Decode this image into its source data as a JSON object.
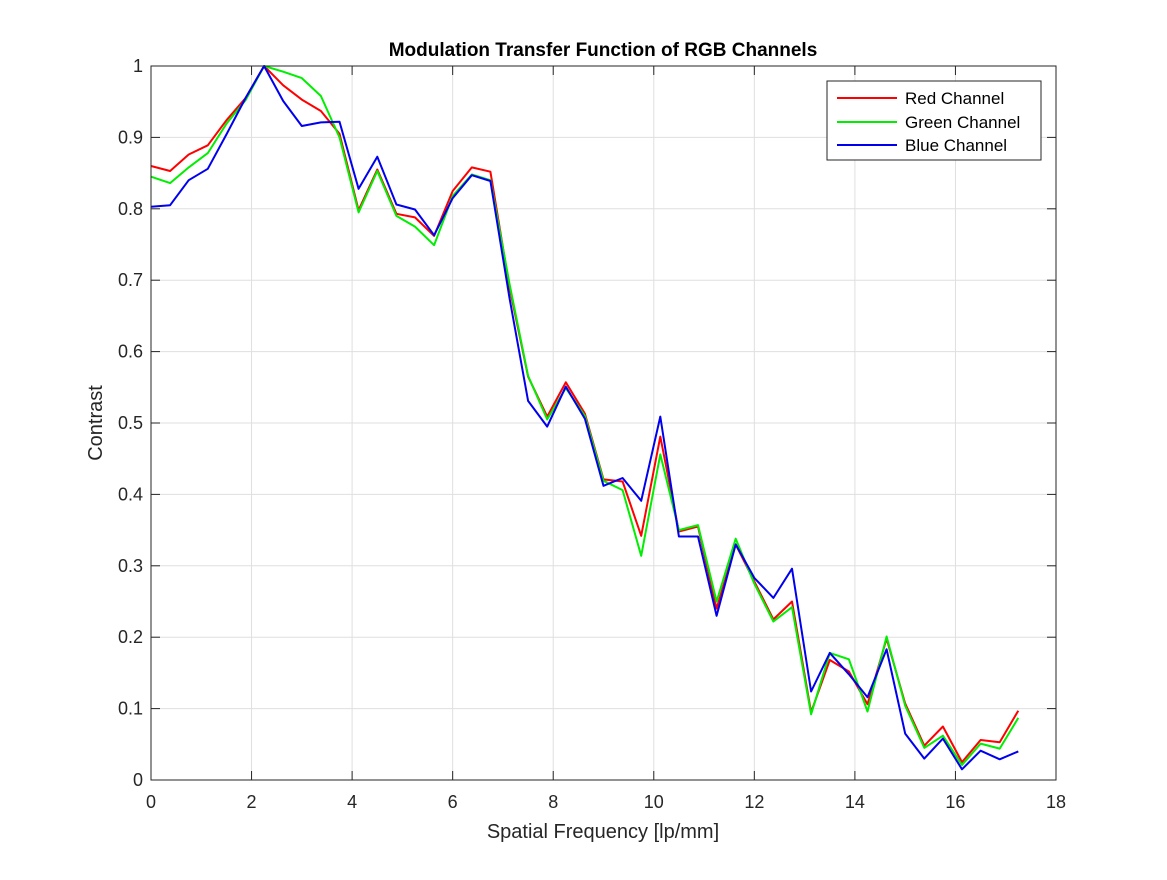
{
  "chart_data": {
    "type": "line",
    "title": "Modulation Transfer Function of RGB Channels",
    "xlabel": "Spatial Frequency [lp/mm]",
    "ylabel": "Contrast",
    "xlim": [
      0,
      18
    ],
    "ylim": [
      0,
      1
    ],
    "xticks": [
      0,
      2,
      4,
      6,
      8,
      10,
      12,
      14,
      16,
      18
    ],
    "yticks": [
      0,
      0.1,
      0.2,
      0.3,
      0.4,
      0.5,
      0.6,
      0.7,
      0.8,
      0.9,
      1
    ],
    "grid": true,
    "legend_position": "top-right",
    "x": [
      0,
      0.38,
      0.75,
      1.13,
      1.5,
      1.88,
      2.25,
      2.63,
      3.0,
      3.38,
      3.75,
      4.13,
      4.5,
      4.88,
      5.25,
      5.63,
      6.0,
      6.38,
      6.75,
      7.13,
      7.5,
      7.88,
      8.25,
      8.63,
      9.0,
      9.38,
      9.75,
      10.13,
      10.5,
      10.88,
      11.25,
      11.63,
      12.0,
      12.38,
      12.75,
      13.13,
      13.5,
      13.88,
      14.25,
      14.63,
      15.0,
      15.38,
      15.75,
      16.13,
      16.5,
      16.88,
      17.25
    ],
    "series": [
      {
        "name": "Red Channel",
        "color": "#ff0000",
        "values": [
          0.86,
          0.853,
          0.876,
          0.889,
          0.924,
          0.955,
          1.0,
          0.973,
          0.953,
          0.937,
          0.905,
          0.798,
          0.855,
          0.793,
          0.788,
          0.762,
          0.825,
          0.858,
          0.852,
          0.69,
          0.565,
          0.509,
          0.557,
          0.513,
          0.421,
          0.418,
          0.342,
          0.481,
          0.348,
          0.355,
          0.24,
          0.33,
          0.278,
          0.225,
          0.25,
          0.095,
          0.168,
          0.152,
          0.106,
          0.198,
          0.107,
          0.048,
          0.075,
          0.025,
          0.056,
          0.053,
          0.097
        ]
      },
      {
        "name": "Green Channel",
        "color": "#00ee00",
        "values": [
          0.845,
          0.836,
          0.858,
          0.878,
          0.919,
          0.952,
          1.0,
          0.992,
          0.983,
          0.958,
          0.9,
          0.795,
          0.853,
          0.79,
          0.775,
          0.749,
          0.818,
          0.848,
          0.84,
          0.695,
          0.566,
          0.505,
          0.549,
          0.51,
          0.419,
          0.406,
          0.314,
          0.456,
          0.35,
          0.357,
          0.25,
          0.338,
          0.275,
          0.222,
          0.242,
          0.092,
          0.178,
          0.169,
          0.096,
          0.201,
          0.104,
          0.045,
          0.062,
          0.021,
          0.051,
          0.044,
          0.087
        ]
      },
      {
        "name": "Blue Channel",
        "color": "#0000ee",
        "values": [
          0.803,
          0.805,
          0.84,
          0.856,
          0.904,
          0.955,
          1.0,
          0.951,
          0.916,
          0.921,
          0.922,
          0.828,
          0.873,
          0.806,
          0.799,
          0.763,
          0.815,
          0.847,
          0.839,
          0.675,
          0.531,
          0.495,
          0.551,
          0.506,
          0.412,
          0.423,
          0.391,
          0.509,
          0.341,
          0.341,
          0.23,
          0.33,
          0.283,
          0.255,
          0.296,
          0.124,
          0.178,
          0.148,
          0.116,
          0.183,
          0.065,
          0.03,
          0.058,
          0.015,
          0.041,
          0.029,
          0.04
        ]
      }
    ]
  }
}
